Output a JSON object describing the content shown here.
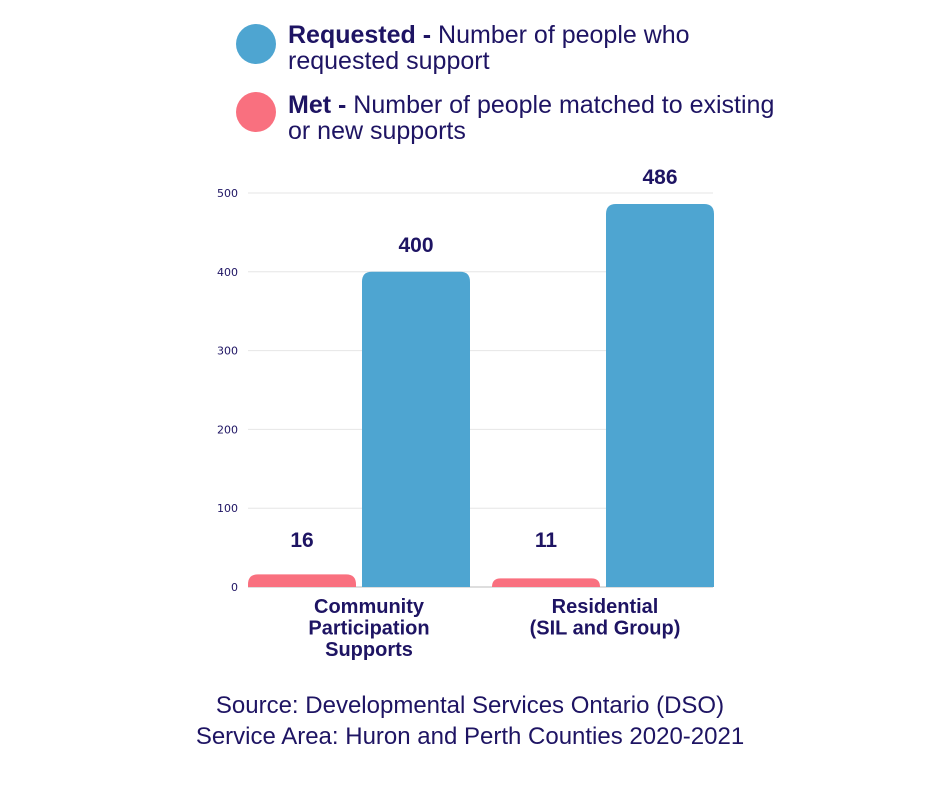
{
  "legend": [
    {
      "key": "Requested -",
      "desc": "Number of people who requested support",
      "color": "#4ea5d1"
    },
    {
      "key": "Met -",
      "desc": "Number of people matched to existing or new supports",
      "color": "#f9707f"
    }
  ],
  "chart_data": {
    "type": "bar",
    "categories": [
      [
        "Community",
        "Participation",
        "Supports"
      ],
      [
        "Residential",
        "(SIL and Group)"
      ]
    ],
    "series": [
      {
        "name": "Met",
        "values": [
          16,
          11
        ],
        "color": "#f9707f"
      },
      {
        "name": "Requested",
        "values": [
          400,
          486
        ],
        "color": "#4ea5d1"
      }
    ],
    "yticks": [
      0,
      100,
      200,
      300,
      400,
      500
    ],
    "ylim": [
      0,
      500
    ],
    "grid": true,
    "legend_position": "top"
  },
  "source": {
    "line1": "Source: Developmental Services Ontario (DSO)",
    "line2": "Service Area: Huron and Perth Counties 2020-2021"
  }
}
